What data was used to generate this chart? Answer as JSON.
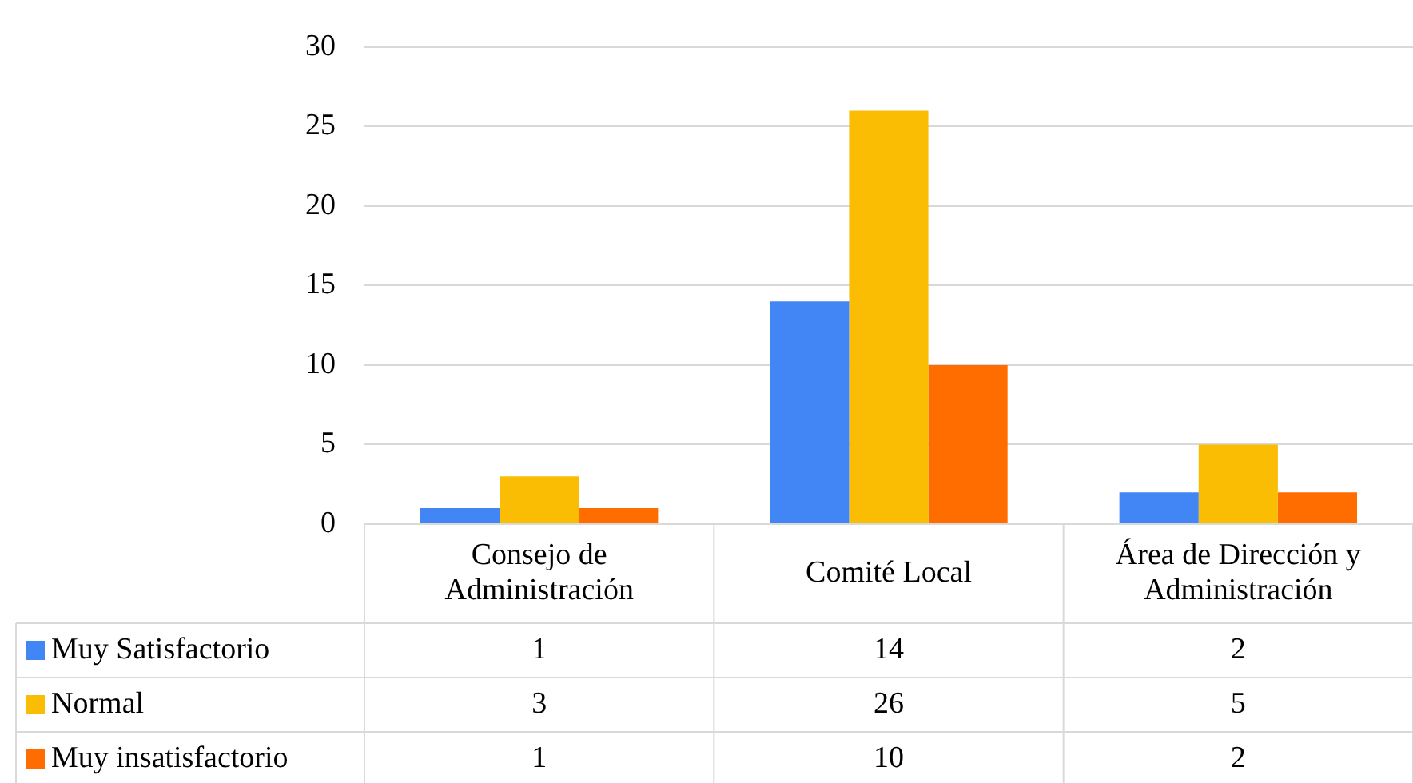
{
  "chart_data": {
    "type": "bar",
    "categories": [
      "Consejo de Administración",
      "Comité Local",
      "Área de Dirección y Administración"
    ],
    "series": [
      {
        "name": "Muy Satisfactorio",
        "color": "#4285f4",
        "values": [
          1,
          14,
          2
        ]
      },
      {
        "name": "Normal",
        "color": "#fbbc04",
        "values": [
          3,
          26,
          5
        ]
      },
      {
        "name": "Muy insatisfactorio",
        "color": "#ff6d01",
        "values": [
          1,
          10,
          2
        ]
      }
    ],
    "ylim": [
      0,
      30
    ],
    "yticks": [
      0,
      5,
      10,
      15,
      20,
      25,
      30
    ],
    "grid": "y",
    "legend": "bottom left",
    "data_labels": true
  }
}
